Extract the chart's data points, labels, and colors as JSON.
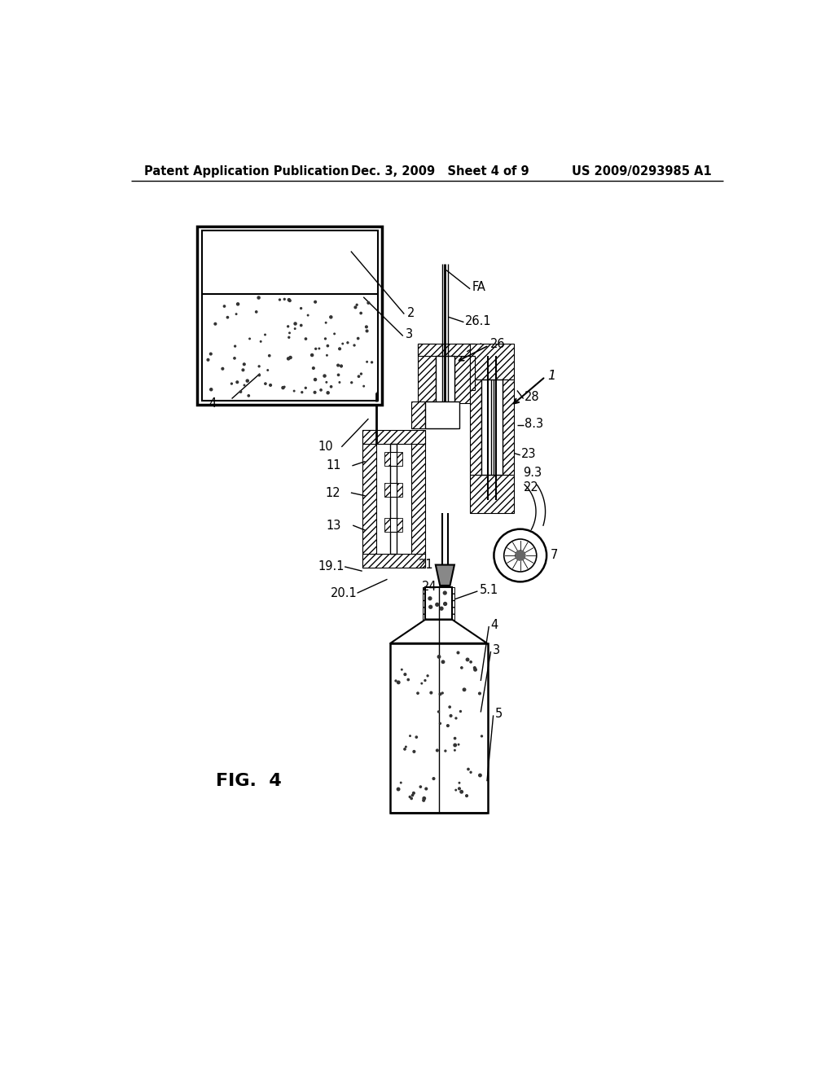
{
  "background_color": "#ffffff",
  "header_left": "Patent Application Publication",
  "header_center": "Dec. 3, 2009   Sheet 4 of 9",
  "header_right": "US 2009/0293985 A1",
  "figure_label": "FIG.  4",
  "header_fontsize": 10,
  "label_fontsize": 10.5,
  "fig_label_fontsize": 16
}
